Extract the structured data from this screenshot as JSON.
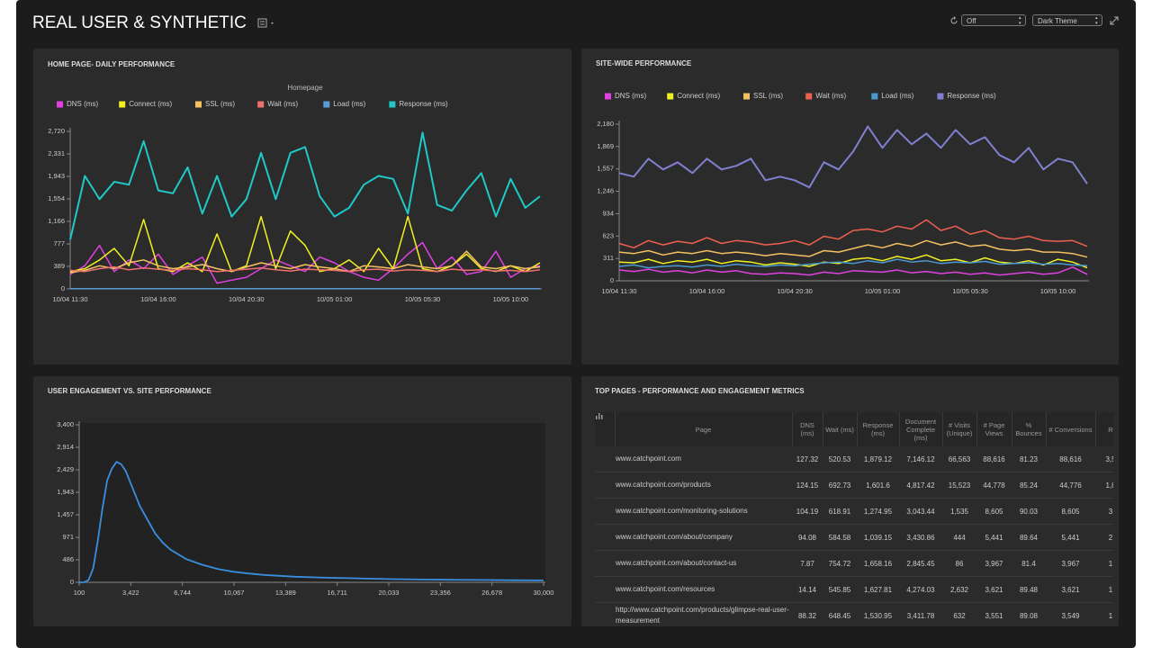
{
  "header": {
    "title": "REAL USER & SYNTHETIC",
    "refresh_select": "Off",
    "theme_select": "Dark Theme"
  },
  "chart_data": [
    {
      "type": "line",
      "title": "HOME PAGE- DAILY PERFORMANCE",
      "subtitle": "Homepage",
      "categories": [
        "10/04 11:30",
        null,
        null,
        null,
        null,
        null,
        "10/04 16:00",
        null,
        null,
        null,
        null,
        null,
        "10/04 20:30",
        null,
        null,
        null,
        null,
        null,
        "10/05 01:00",
        null,
        null,
        null,
        null,
        null,
        "10/05 05:30",
        null,
        null,
        null,
        null,
        null,
        "10/05 10:00",
        null,
        null
      ],
      "series": [
        {
          "name": "DNS (ms)",
          "color": "#e040e0",
          "values": [
            250,
            400,
            750,
            300,
            500,
            350,
            600,
            250,
            400,
            550,
            100,
            150,
            200,
            350,
            500,
            400,
            300,
            550,
            450,
            300,
            200,
            150,
            350,
            600,
            800,
            350,
            550,
            250,
            300,
            650,
            200,
            350,
            400
          ]
        },
        {
          "name": "Connect (ms)",
          "color": "#f0f020",
          "values": [
            300,
            350,
            500,
            700,
            400,
            1200,
            350,
            300,
            450,
            300,
            950,
            300,
            400,
            1250,
            350,
            1000,
            750,
            300,
            350,
            500,
            300,
            700,
            350,
            1250,
            350,
            300,
            400,
            600,
            350,
            300,
            400,
            300,
            450
          ]
        },
        {
          "name": "SSL (ms)",
          "color": "#f5c060",
          "values": [
            280,
            320,
            400,
            350,
            450,
            500,
            400,
            350,
            380,
            420,
            350,
            300,
            380,
            450,
            400,
            350,
            420,
            380,
            350,
            300,
            400,
            380,
            350,
            420,
            380,
            350,
            400,
            650,
            380,
            350,
            400,
            350,
            380
          ]
        },
        {
          "name": "Wait (ms)",
          "color": "#f07070",
          "values": [
            320,
            300,
            350,
            380,
            330,
            360,
            340,
            320,
            350,
            330,
            300,
            320,
            340,
            360,
            330,
            310,
            340,
            330,
            320,
            300,
            330,
            340,
            310,
            330,
            320,
            300,
            340,
            320,
            330,
            310,
            320,
            300,
            330
          ]
        },
        {
          "name": "Load (ms)",
          "color": "#5b9bd5",
          "values": [
            5,
            5,
            5,
            5,
            5,
            5,
            5,
            5,
            5,
            5,
            5,
            5,
            5,
            5,
            5,
            5,
            5,
            5,
            5,
            5,
            5,
            5,
            5,
            5,
            5,
            5,
            5,
            5,
            5,
            5,
            5,
            5,
            5
          ]
        },
        {
          "name": "Response (ms)",
          "color": "#20c8c8",
          "values": [
            850,
            1950,
            1550,
            1850,
            1800,
            2550,
            1700,
            1650,
            2100,
            1300,
            1950,
            1250,
            1550,
            2350,
            1550,
            2350,
            2450,
            1600,
            1250,
            1400,
            1800,
            1950,
            1900,
            1300,
            2700,
            1450,
            1350,
            1700,
            2000,
            1250,
            1900,
            1400,
            1600
          ]
        }
      ],
      "ylim": [
        0,
        2720
      ],
      "yticks": [
        0,
        389,
        777,
        {
          "value": 1166,
          "label": "1,166"
        },
        {
          "value": 1554,
          "label": "1,554"
        },
        {
          "value": 1943,
          "label": "1,943"
        },
        {
          "value": 2331,
          "label": "2,331"
        },
        {
          "value": 2720,
          "label": "2,720"
        }
      ],
      "grid": false,
      "legend": "top"
    },
    {
      "type": "line",
      "title": "SITE-WIDE PERFORMANCE",
      "categories": [
        "10/04 11:30",
        null,
        null,
        null,
        null,
        null,
        "10/04 16:00",
        null,
        null,
        null,
        null,
        null,
        "10/04 20:30",
        null,
        null,
        null,
        null,
        null,
        "10/05 01:00",
        null,
        null,
        null,
        null,
        null,
        "10/05 05:30",
        null,
        null,
        null,
        null,
        null,
        "10/05 10:00",
        null,
        null
      ],
      "series": [
        {
          "name": "DNS (ms)",
          "color": "#e040e0",
          "values": [
            150,
            130,
            160,
            120,
            140,
            110,
            150,
            120,
            140,
            100,
            90,
            110,
            100,
            80,
            120,
            100,
            140,
            130,
            120,
            150,
            110,
            130,
            100,
            120,
            90,
            110,
            80,
            100,
            120,
            90,
            110,
            190,
            90
          ]
        },
        {
          "name": "Connect (ms)",
          "color": "#f0f020",
          "values": [
            260,
            250,
            300,
            240,
            280,
            260,
            300,
            240,
            280,
            260,
            220,
            250,
            230,
            200,
            260,
            240,
            300,
            320,
            280,
            340,
            300,
            360,
            280,
            300,
            250,
            320,
            260,
            240,
            280,
            220,
            300,
            260,
            180
          ]
        },
        {
          "name": "SSL (ms)",
          "color": "#f5c060",
          "values": [
            400,
            380,
            420,
            360,
            400,
            380,
            420,
            380,
            400,
            380,
            350,
            380,
            360,
            340,
            420,
            400,
            450,
            500,
            460,
            520,
            480,
            560,
            500,
            540,
            480,
            500,
            440,
            420,
            440,
            400,
            400,
            380,
            330
          ]
        },
        {
          "name": "Wait (ms)",
          "color": "#f06050",
          "values": [
            520,
            460,
            560,
            500,
            550,
            520,
            600,
            520,
            560,
            540,
            500,
            520,
            560,
            500,
            620,
            580,
            700,
            720,
            680,
            760,
            720,
            850,
            700,
            760,
            650,
            700,
            600,
            580,
            620,
            560,
            550,
            560,
            480
          ]
        },
        {
          "name": "Load (ms)",
          "color": "#4a9ad0",
          "values": [
            200,
            220,
            180,
            200,
            210,
            190,
            220,
            200,
            230,
            210,
            200,
            220,
            210,
            230,
            250,
            260,
            240,
            280,
            250,
            300,
            260,
            280,
            240,
            260,
            250,
            270,
            230,
            240,
            250,
            230,
            240,
            220,
            210
          ]
        },
        {
          "name": "Response (ms)",
          "color": "#8080d0",
          "values": [
            1500,
            1450,
            1700,
            1550,
            1650,
            1500,
            1700,
            1550,
            1600,
            1700,
            1400,
            1450,
            1400,
            1300,
            1650,
            1550,
            1800,
            2150,
            1850,
            2100,
            1900,
            2050,
            1850,
            2100,
            1900,
            2000,
            1750,
            1650,
            1850,
            1550,
            1700,
            1650,
            1350
          ]
        }
      ],
      "ylim": [
        0,
        2180
      ],
      "yticks": [
        0,
        311,
        623,
        934,
        {
          "value": 1246,
          "label": "1,246"
        },
        {
          "value": 1557,
          "label": "1,557"
        },
        {
          "value": 1869,
          "label": "1,869"
        },
        {
          "value": 2180,
          "label": "2,180"
        }
      ],
      "grid": false,
      "legend": "top"
    },
    {
      "type": "line",
      "title": "USER ENGAGEMENT VS. SITE PERFORMANCE",
      "color": "#3a8ee0",
      "x": [
        100,
        400,
        700,
        1000,
        1300,
        1600,
        1900,
        2200,
        2500,
        2800,
        3100,
        3400,
        3700,
        4000,
        4500,
        5000,
        5500,
        6000,
        7000,
        8000,
        9000,
        10000,
        11000,
        12000,
        13000,
        14000,
        16000,
        18000,
        20000,
        22000,
        24000,
        26000,
        28000,
        30000
      ],
      "values": [
        0,
        0,
        50,
        300,
        900,
        1600,
        2200,
        2450,
        2600,
        2550,
        2400,
        2150,
        1900,
        1650,
        1350,
        1050,
        850,
        700,
        500,
        380,
        290,
        230,
        190,
        160,
        140,
        120,
        100,
        85,
        70,
        60,
        55,
        50,
        45,
        40
      ],
      "xlim": [
        100,
        30000
      ],
      "xticks": [
        100,
        {
          "value": 3422,
          "label": "3,422"
        },
        {
          "value": 6744,
          "label": "6,744"
        },
        {
          "value": 10067,
          "label": "10,067"
        },
        {
          "value": 13389,
          "label": "13,389"
        },
        {
          "value": 16711,
          "label": "16,711"
        },
        {
          "value": 20033,
          "label": "20,033"
        },
        {
          "value": 23356,
          "label": "23,356"
        },
        {
          "value": 26678,
          "label": "26,678"
        },
        {
          "value": 30000,
          "label": "30,000"
        }
      ],
      "ylim": [
        0,
        3400
      ],
      "yticks": [
        0,
        486,
        971,
        {
          "value": 1457,
          "label": "1,457"
        },
        {
          "value": 1943,
          "label": "1,943"
        },
        {
          "value": 2429,
          "label": "2,429"
        },
        {
          "value": 2914,
          "label": "2,914"
        },
        {
          "value": 3400,
          "label": "3,400"
        }
      ],
      "grid": false
    }
  ],
  "table": {
    "title": "TOP PAGES - PERFORMANCE AND ENGAGEMENT METRICS",
    "columns": [
      "Page",
      "DNS (ms)",
      "Wait (ms)",
      "Response (ms)",
      "Document Complete (ms)",
      "# Visits (Unique)",
      "# Page Views",
      "% Bounces",
      "# Conversions",
      "R"
    ],
    "rows": [
      [
        "www.catchpoint.com",
        "127.32",
        "520.53",
        "1,879.12",
        "7,146.12",
        "66,563",
        "88,616",
        "81.23",
        "88,616",
        "3,5"
      ],
      [
        "www.catchpoint.com/products",
        "124.15",
        "692.73",
        "1,601.6",
        "4,817.42",
        "15,523",
        "44,778",
        "85.24",
        "44,776",
        "1,8"
      ],
      [
        "www.catchpoint.com/monitoring-solutions",
        "104.19",
        "618.91",
        "1,274.95",
        "3,043.44",
        "1,535",
        "8,605",
        "90.03",
        "8,605",
        "3"
      ],
      [
        "www.catchpoint.com/about/company",
        "94.08",
        "584.58",
        "1,039.15",
        "3,430.86",
        "444",
        "5,441",
        "89.64",
        "5,441",
        "2"
      ],
      [
        "www.catchpoint.com/about/contact-us",
        "7.87",
        "754.72",
        "1,658.16",
        "2,845.45",
        "86",
        "3,967",
        "81.4",
        "3,967",
        "1"
      ],
      [
        "www.catchpoint.com/resources",
        "14.14",
        "545.85",
        "1,627.81",
        "4,274.03",
        "2,632",
        "3,621",
        "89.48",
        "3,621",
        "1"
      ],
      [
        "http://www.catchpoint.com/products/glimpse-real-user-measurement",
        "88.32",
        "648.45",
        "1,530.95",
        "3,411.78",
        "632",
        "3,551",
        "89.08",
        "3,549",
        "1"
      ]
    ]
  }
}
